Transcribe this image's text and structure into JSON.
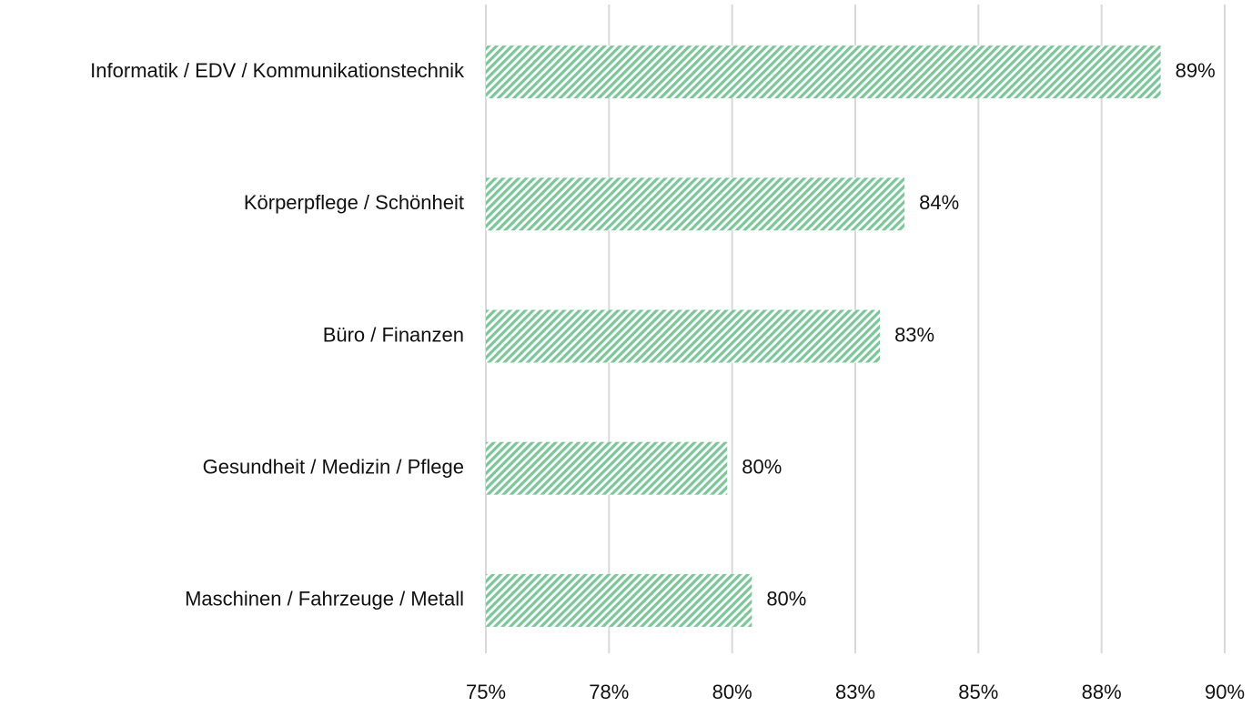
{
  "chart_data": {
    "type": "barh",
    "categories": [
      "Informatik / EDV / Kommunikationstechnik",
      "Körperpflege / Schönheit",
      "Büro / Finanzen",
      "Gesundheit / Medizin / Pflege",
      "Maschinen / Fahrzeuge / Metall"
    ],
    "values": [
      88.7,
      83.5,
      83.0,
      79.9,
      80.4
    ],
    "value_labels": [
      "89%",
      "84%",
      "83%",
      "80%",
      "80%"
    ],
    "color": "#7cc79a",
    "xlim": [
      75,
      90
    ],
    "xticks": [
      {
        "value": 75,
        "label": "75%"
      },
      {
        "value": 77.5,
        "label": "78%"
      },
      {
        "value": 80,
        "label": "80%"
      },
      {
        "value": 82.5,
        "label": "83%"
      },
      {
        "value": 85,
        "label": "85%"
      },
      {
        "value": 87.5,
        "label": "88%"
      },
      {
        "value": 90,
        "label": "90%"
      }
    ],
    "grid": true
  }
}
